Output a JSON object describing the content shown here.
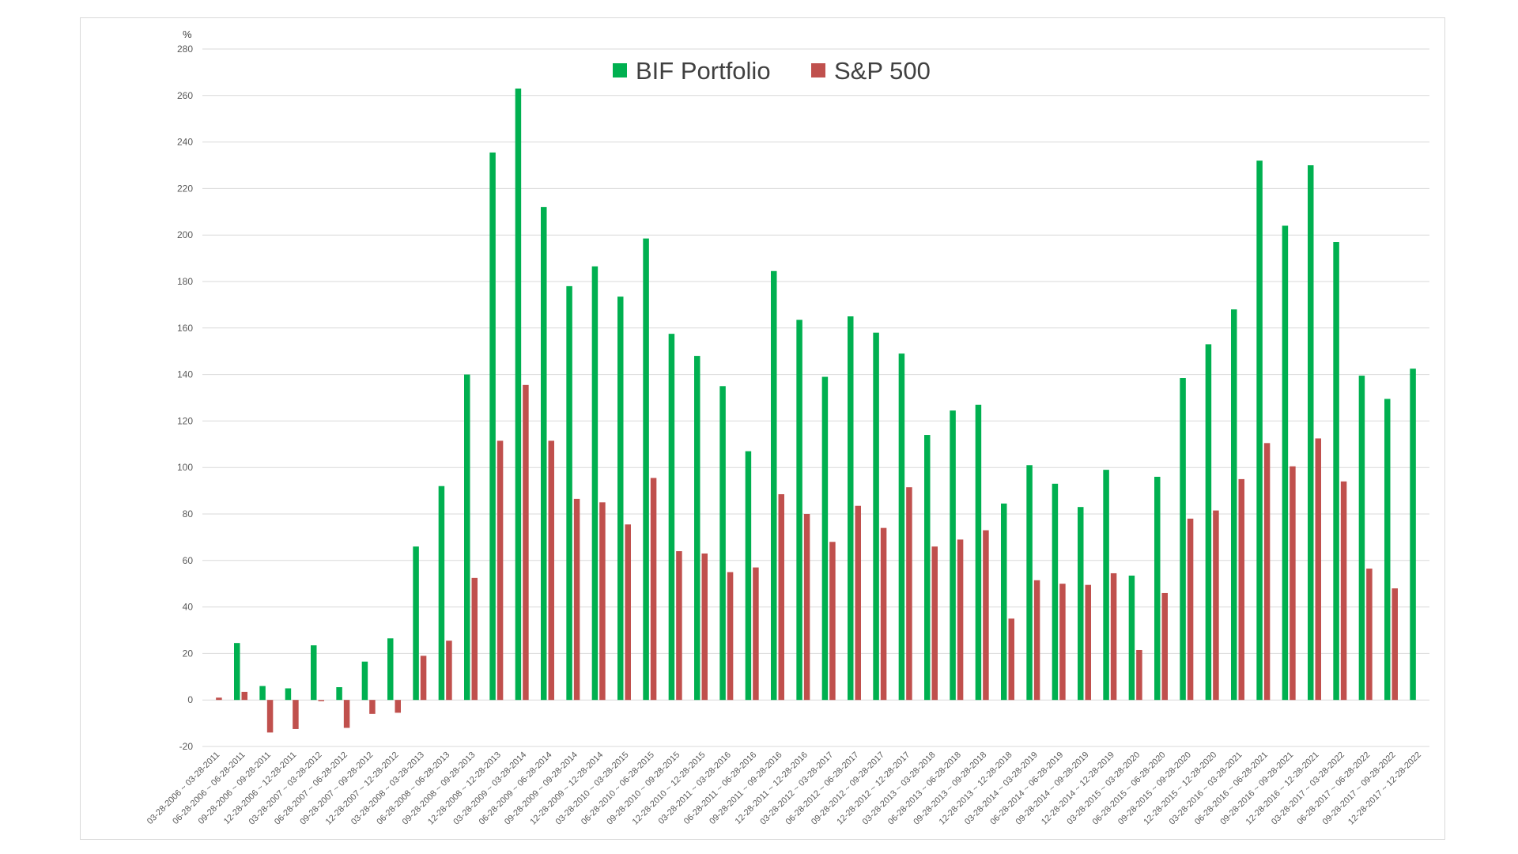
{
  "chart_data": {
    "type": "bar",
    "y_unit_label": "%",
    "ylim": [
      -20,
      280
    ],
    "y_ticks": [
      -20,
      0,
      20,
      40,
      60,
      80,
      100,
      120,
      140,
      160,
      180,
      200,
      220,
      240,
      260,
      280
    ],
    "grid": true,
    "legend_position": "top-center",
    "categories": [
      "03-28-2006 ~ 03-28-2011",
      "06-28-2006 ~ 06-28-2011",
      "09-28-2006 ~ 09-28-2011",
      "12-28-2006 ~ 12-28-2011",
      "03-28-2007 ~ 03-28-2012",
      "06-28-2007 ~ 06-28-2012",
      "09-28-2007 ~ 09-28-2012",
      "12-28-2007 ~ 12-28-2012",
      "03-28-2008 ~ 03-28-2013",
      "06-28-2008 ~ 06-28-2013",
      "09-28-2008 ~ 09-28-2013",
      "12-28-2008 ~ 12-28-2013",
      "03-28-2009 ~ 03-28-2014",
      "06-28-2009 ~ 06-28-2014",
      "09-28-2009 ~ 09-28-2014",
      "12-28-2009 ~ 12-28-2014",
      "03-28-2010 ~ 03-28-2015",
      "06-28-2010 ~ 06-28-2015",
      "09-28-2010 ~ 09-28-2015",
      "12-28-2010 ~ 12-28-2015",
      "03-28-2011 ~ 03-28-2016",
      "06-28-2011 ~ 06-28-2016",
      "09-28-2011 ~ 09-28-2016",
      "12-28-2011 ~ 12-28-2016",
      "03-28-2012 ~ 03-28-2017",
      "06-28-2012 ~ 06-28-2017",
      "09-28-2012 ~ 09-28-2017",
      "12-28-2012 ~ 12-28-2017",
      "03-28-2013 ~ 03-28-2018",
      "06-28-2013 ~ 06-28-2018",
      "09-28-2013 ~ 09-28-2018",
      "12-28-2013 ~ 12-28-2018",
      "03-28-2014 ~ 03-28-2019",
      "06-28-2014 ~ 06-28-2019",
      "09-28-2014 ~ 09-28-2019",
      "12-28-2014 ~ 12-28-2019",
      "03-28-2015 ~ 03-28-2020",
      "06-28-2015 ~ 06-28-2020",
      "09-28-2015 ~ 09-28-2020",
      "12-28-2015 ~ 12-28-2020",
      "03-28-2016 ~ 03-28-2021",
      "06-28-2016 ~ 06-28-2021",
      "09-28-2016 ~ 09-28-2021",
      "12-28-2016 ~ 12-28-2021",
      "03-28-2017 ~ 03-28-2022",
      "06-28-2017 ~ 06-28-2022",
      "09-28-2017 ~ 09-28-2022",
      "12-28-2017 ~ 12-28-2022"
    ],
    "series": [
      {
        "name": "BIF Portfolio",
        "color": "#00b050",
        "values": [
          0,
          24.5,
          6,
          5,
          23.5,
          5.5,
          16.5,
          26.5,
          66,
          92,
          140,
          235.5,
          263,
          212,
          178,
          186.5,
          173.5,
          198.5,
          157.5,
          148,
          135,
          107,
          184.5,
          163.5,
          139,
          165,
          158,
          149,
          114,
          124.5,
          127,
          84.5,
          101,
          93,
          83,
          99,
          53.5,
          96,
          138.5,
          153,
          168,
          232,
          204,
          230,
          197,
          139.5,
          129.5,
          142.5
        ]
      },
      {
        "name": "S&P 500",
        "color": "#c0504d",
        "values": [
          1,
          3.5,
          -14,
          -12.5,
          -0.5,
          -12,
          -6,
          -5.5,
          19,
          25.5,
          52.5,
          111.5,
          135.5,
          111.5,
          86.5,
          85,
          75.5,
          95.5,
          64,
          63,
          55,
          57,
          88.5,
          80,
          68,
          83.5,
          74,
          91.5,
          66,
          69,
          73,
          35,
          51.5,
          50,
          49.5,
          54.5,
          21.5,
          46,
          78,
          81.5,
          95,
          110.5,
          100.5,
          112.5,
          94,
          56.5,
          48,
          0
        ]
      }
    ]
  }
}
